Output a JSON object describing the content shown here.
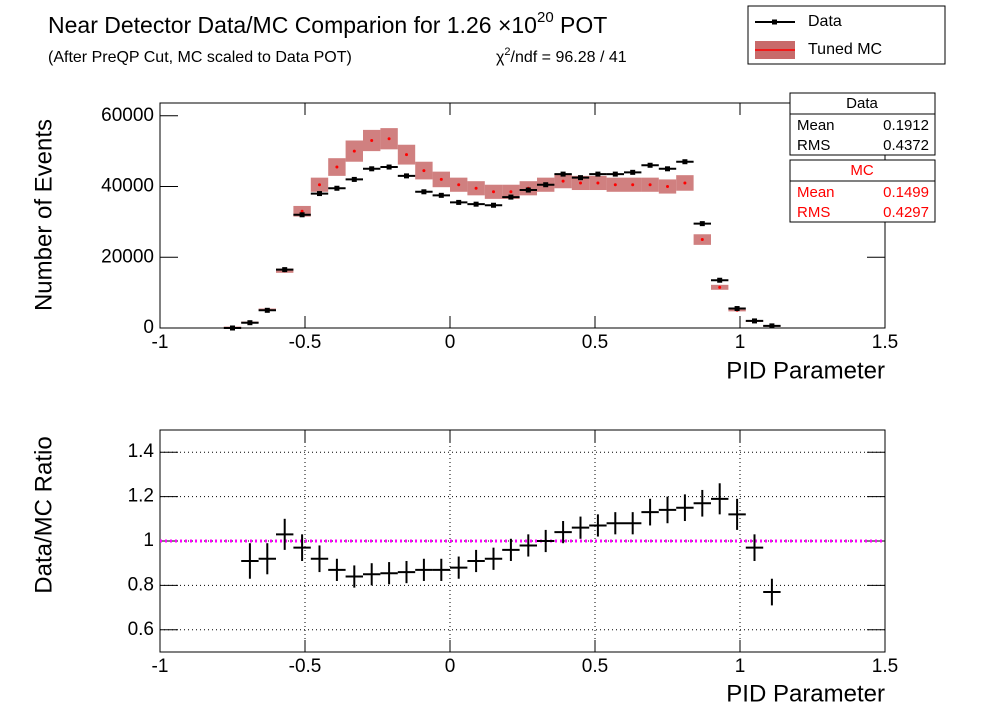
{
  "header": {
    "title": "Near Detector Data/MC Comparion for 1.26 ×10",
    "title_exponent": "20",
    "title_unit": " POT",
    "subtitle": "(After PreQP Cut, MC scaled to Data POT)",
    "chi2_symbol": "χ",
    "chi2_exponent": "2",
    "chi2_text": "/ndf = 96.28 / 41"
  },
  "stats_boxes": [
    {
      "title": "Data",
      "color": "#000000",
      "rows": [
        [
          "Mean",
          "0.1912"
        ],
        [
          "RMS",
          "0.4372"
        ]
      ]
    },
    {
      "title": "MC",
      "color": "#ff0000",
      "rows": [
        [
          "Mean",
          "0.1499"
        ],
        [
          "RMS",
          "0.4297"
        ]
      ]
    }
  ],
  "chart_data": [
    {
      "type": "scatter",
      "x_label": "PID Parameter",
      "y_label": "Number of Events",
      "xlim": [
        -1,
        1.5
      ],
      "xticks": [
        -1,
        -0.5,
        0,
        0.5,
        1,
        1.5
      ],
      "ylim": [
        0,
        63600
      ],
      "yticks": [
        0,
        20000,
        40000,
        60000
      ],
      "grid": false,
      "bin_width": 0.06,
      "x": [
        -0.75,
        -0.69,
        -0.63,
        -0.57,
        -0.51,
        -0.45,
        -0.39,
        -0.33,
        -0.27,
        -0.21,
        -0.15,
        -0.09,
        -0.03,
        0.03,
        0.09,
        0.15,
        0.21,
        0.27,
        0.33,
        0.39,
        0.45,
        0.51,
        0.57,
        0.63,
        0.69,
        0.75,
        0.81,
        0.87,
        0.93,
        0.99,
        1.05,
        1.11
      ],
      "series": [
        {
          "name": "Data",
          "style": "points",
          "color": "#000000",
          "values": [
            0,
            1500,
            5000,
            16500,
            32000,
            38000,
            39500,
            42000,
            45000,
            45500,
            43000,
            38500,
            37500,
            35500,
            35000,
            34700,
            37000,
            39000,
            40500,
            43500,
            42500,
            43500,
            43500,
            44000,
            46000,
            45000,
            47000,
            29500,
            13500,
            5500,
            2000,
            600
          ]
        },
        {
          "name": "Tuned MC",
          "style": "band",
          "color": "#ff0000",
          "band_color": "#c86a6a",
          "values": [
            300,
            1650,
            5200,
            16200,
            33000,
            40500,
            45500,
            50000,
            53000,
            53500,
            49000,
            44500,
            42000,
            40500,
            39500,
            38500,
            38500,
            39500,
            40500,
            41500,
            41000,
            41000,
            40500,
            40500,
            40500,
            40000,
            41000,
            25000,
            11500,
            5000,
            2000,
            700
          ],
          "errors": [
            100,
            150,
            300,
            600,
            1500,
            2000,
            2500,
            3000,
            3000,
            3000,
            2800,
            2500,
            2200,
            2000,
            2000,
            2000,
            2000,
            2000,
            2000,
            2000,
            2000,
            2000,
            2000,
            2000,
            2000,
            2000,
            2200,
            1500,
            700,
            300,
            150,
            80
          ]
        }
      ]
    },
    {
      "type": "scatter",
      "x_label": "PID Parameter",
      "y_label": "Data/MC Ratio",
      "xlim": [
        -1,
        1.5
      ],
      "xticks": [
        -1,
        -0.5,
        0,
        0.5,
        1,
        1.5
      ],
      "ylim": [
        0.5,
        1.5
      ],
      "yticks": [
        0.6,
        0.8,
        1,
        1.2,
        1.4
      ],
      "grid": true,
      "bin_width": 0.06,
      "reference_line": {
        "value": 1,
        "color": "#ff00ff"
      },
      "x": [
        -0.69,
        -0.63,
        -0.57,
        -0.51,
        -0.45,
        -0.39,
        -0.33,
        -0.27,
        -0.21,
        -0.15,
        -0.09,
        -0.03,
        0.03,
        0.09,
        0.15,
        0.21,
        0.27,
        0.33,
        0.39,
        0.45,
        0.51,
        0.57,
        0.63,
        0.69,
        0.75,
        0.81,
        0.87,
        0.93,
        0.99,
        1.05,
        1.11
      ],
      "series": [
        {
          "style": "crosses",
          "color": "#000000",
          "values": [
            0.91,
            0.92,
            1.03,
            0.97,
            0.92,
            0.87,
            0.84,
            0.85,
            0.855,
            0.86,
            0.87,
            0.87,
            0.88,
            0.91,
            0.92,
            0.96,
            0.98,
            1.0,
            1.04,
            1.06,
            1.07,
            1.08,
            1.08,
            1.13,
            1.14,
            1.15,
            1.17,
            1.19,
            1.12,
            0.97,
            0.77
          ],
          "errors": [
            0.08,
            0.07,
            0.07,
            0.06,
            0.06,
            0.05,
            0.05,
            0.05,
            0.05,
            0.05,
            0.05,
            0.05,
            0.05,
            0.05,
            0.05,
            0.05,
            0.05,
            0.05,
            0.05,
            0.05,
            0.05,
            0.05,
            0.05,
            0.06,
            0.06,
            0.06,
            0.06,
            0.07,
            0.07,
            0.06,
            0.06
          ]
        }
      ]
    }
  ]
}
